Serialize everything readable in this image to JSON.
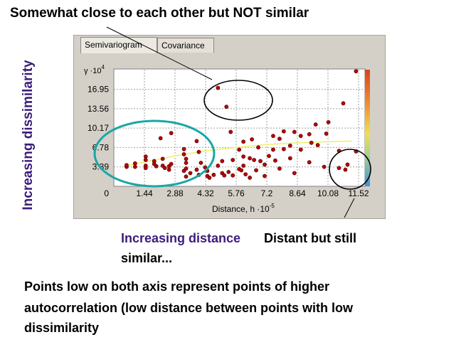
{
  "annotations": {
    "top": "Somewhat close to each other but NOT similar",
    "y_axis": "Increasing dissimilarity",
    "x_axis": "Increasing distance",
    "distant_line1": "Distant but still",
    "distant_line2": "similar...",
    "summary_line1": "Points low on both axis represent points of higher",
    "summary_line2": "autocorrelation (low distance between points with low",
    "summary_line3": "dissimilarity"
  },
  "tabs": [
    {
      "label": "Semivariogram",
      "active": true
    },
    {
      "label": "Covariance",
      "active": false
    }
  ],
  "chart_data": {
    "type": "scatter",
    "ylabel_main": "γ ·10",
    "ylabel_exp": "4",
    "xlabel_main": "Distance, h ·10",
    "xlabel_exp": "-5",
    "yticks": [
      {
        "v": 0,
        "label": "0"
      },
      {
        "v": 3.39,
        "label": "3.39"
      },
      {
        "v": 6.78,
        "label": "6.78"
      },
      {
        "v": 10.17,
        "label": "10.17"
      },
      {
        "v": 13.56,
        "label": "13.56"
      },
      {
        "v": 16.95,
        "label": "16.95"
      }
    ],
    "xticks": [
      {
        "v": 1.44,
        "label": "1.44"
      },
      {
        "v": 2.88,
        "label": "2.88"
      },
      {
        "v": 4.32,
        "label": "4.32"
      },
      {
        "v": 5.76,
        "label": "5.76"
      },
      {
        "v": 7.2,
        "label": "7.2"
      },
      {
        "v": 8.64,
        "label": "8.64"
      },
      {
        "v": 10.08,
        "label": "10.08"
      },
      {
        "v": 11.52,
        "label": "11.52"
      }
    ],
    "xlim": [
      0,
      11.52
    ],
    "ylim": [
      0,
      20.5
    ],
    "model_line": [
      [
        0.6,
        3.6
      ],
      [
        1.5,
        4.3
      ],
      [
        2.88,
        5.3
      ],
      [
        4.32,
        6.2
      ],
      [
        5.76,
        6.8
      ],
      [
        7.2,
        7.3
      ],
      [
        8.64,
        7.6
      ],
      [
        10.08,
        7.8
      ],
      [
        11.2,
        7.9
      ]
    ],
    "points": [
      [
        0.6,
        3.4
      ],
      [
        0.6,
        3.7
      ],
      [
        1.0,
        3.4
      ],
      [
        1.0,
        4.0
      ],
      [
        1.5,
        5.2
      ],
      [
        1.5,
        4.6
      ],
      [
        1.5,
        3.6
      ],
      [
        1.5,
        3.2
      ],
      [
        1.9,
        4.4
      ],
      [
        1.9,
        3.9
      ],
      [
        2.0,
        3.5
      ],
      [
        2.3,
        4.8
      ],
      [
        2.3,
        3.6
      ],
      [
        2.4,
        3.2
      ],
      [
        2.6,
        2.9
      ],
      [
        2.6,
        3.5
      ],
      [
        2.7,
        3.9
      ],
      [
        3.4,
        4.8
      ],
      [
        3.4,
        4.1
      ],
      [
        3.4,
        3.1
      ],
      [
        3.6,
        2.3
      ],
      [
        2.7,
        9.3
      ],
      [
        2.2,
        8.4
      ],
      [
        3.3,
        6.5
      ],
      [
        3.3,
        5.6
      ],
      [
        3.3,
        2.7
      ],
      [
        3.4,
        1.7
      ],
      [
        3.9,
        7.9
      ],
      [
        3.9,
        2.9
      ],
      [
        4.0,
        6.0
      ],
      [
        4.0,
        2.0
      ],
      [
        4.1,
        4.1
      ],
      [
        4.3,
        3.3
      ],
      [
        4.4,
        2.7
      ],
      [
        4.4,
        1.8
      ],
      [
        4.5,
        1.5
      ],
      [
        4.7,
        2.0
      ],
      [
        4.9,
        3.6
      ],
      [
        5.1,
        4.4
      ],
      [
        5.1,
        2.3
      ],
      [
        5.2,
        1.9
      ],
      [
        5.4,
        2.5
      ],
      [
        5.5,
        9.5
      ],
      [
        5.6,
        4.6
      ],
      [
        5.6,
        1.9
      ],
      [
        5.9,
        6.4
      ],
      [
        5.9,
        3.0
      ],
      [
        6.0,
        2.8
      ],
      [
        6.1,
        3.6
      ],
      [
        6.1,
        5.2
      ],
      [
        6.1,
        7.8
      ],
      [
        6.2,
        2.1
      ],
      [
        6.4,
        1.5
      ],
      [
        6.4,
        4.9
      ],
      [
        6.5,
        8.2
      ],
      [
        6.6,
        4.6
      ],
      [
        6.7,
        2.8
      ],
      [
        6.8,
        6.8
      ],
      [
        6.9,
        4.4
      ],
      [
        7.1,
        3.8
      ],
      [
        7.1,
        1.8
      ],
      [
        7.3,
        5.3
      ],
      [
        7.5,
        8.8
      ],
      [
        7.5,
        6.4
      ],
      [
        7.6,
        4.5
      ],
      [
        7.8,
        3.1
      ],
      [
        7.8,
        8.3
      ],
      [
        8.0,
        9.6
      ],
      [
        8.0,
        6.5
      ],
      [
        8.3,
        7.1
      ],
      [
        8.3,
        4.9
      ],
      [
        8.5,
        9.5
      ],
      [
        8.5,
        2.3
      ],
      [
        8.8,
        8.8
      ],
      [
        8.8,
        6.4
      ],
      [
        9.2,
        4.2
      ],
      [
        9.2,
        9.1
      ],
      [
        9.3,
        7.6
      ],
      [
        9.5,
        10.8
      ],
      [
        9.6,
        7.2
      ],
      [
        9.9,
        3.4
      ],
      [
        10.0,
        9.2
      ],
      [
        10.1,
        11.2
      ],
      [
        10.6,
        6.2
      ],
      [
        10.6,
        3.2
      ],
      [
        10.8,
        14.5
      ],
      [
        10.9,
        2.9
      ],
      [
        11.0,
        3.8
      ],
      [
        11.4,
        6.1
      ],
      [
        11.4,
        20.1
      ],
      [
        4.9,
        17.2
      ],
      [
        5.3,
        13.9
      ]
    ]
  },
  "colors": {
    "point_fill": "#b80000",
    "teal_ellipse": "#1aa6a6",
    "model_line": "#f0f070",
    "panel_bg": "#d4d0c8",
    "plot_bg": "#ffffff",
    "y_caption": "#3b1c7a"
  }
}
